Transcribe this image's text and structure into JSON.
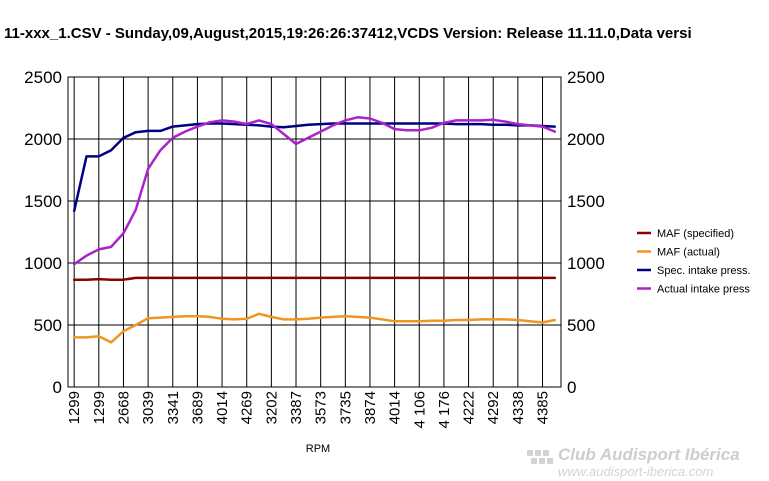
{
  "chart_data": {
    "type": "line",
    "title": "11-xxx_1.CSV - Sunday,09,August,2015,19:26:26:37412,VCDS Version: Release 11.11.0,Data versi",
    "xlabel": "RPM",
    "ylabel": "",
    "ylim": [
      0,
      2500
    ],
    "yticks": [
      "0",
      "500",
      "1000",
      "1500",
      "2000",
      "2500"
    ],
    "y2ticks": [
      "0",
      "500",
      "1000",
      "1500",
      "2000",
      "2500"
    ],
    "categories": [
      "1299",
      "1299",
      "2668",
      "3039",
      "3341",
      "3689",
      "4014",
      "4269",
      "3202",
      "3387",
      "3573",
      "3735",
      "3874",
      "4014",
      "4 106",
      "4 176",
      "4222",
      "4292",
      "4338",
      "4385"
    ],
    "grid": true,
    "legend_position": "right",
    "series": [
      {
        "name": "MAF (specified)",
        "color": "#8b0000",
        "x": [
          0,
          0.5,
          1,
          1.5,
          2,
          2.5,
          3,
          3.5,
          4,
          4.5,
          5,
          5.5,
          6,
          6.5,
          7,
          7.5,
          8,
          8.5,
          9,
          9.5,
          10,
          10.5,
          11,
          11.5,
          12,
          12.5,
          13,
          13.5,
          14,
          14.5,
          15,
          15.5,
          16,
          16.5,
          17,
          17.5,
          18,
          18.5,
          19,
          19.5
        ],
        "values": [
          865,
          865,
          870,
          865,
          865,
          880,
          880,
          880,
          880,
          880,
          880,
          880,
          880,
          880,
          880,
          880,
          880,
          880,
          880,
          880,
          880,
          880,
          880,
          880,
          880,
          880,
          880,
          880,
          880,
          880,
          880,
          880,
          880,
          880,
          880,
          880,
          880,
          880,
          880,
          880
        ]
      },
      {
        "name": "MAF (actual)",
        "color": "#f29422",
        "x": [
          0,
          0.5,
          1,
          1.5,
          2,
          2.5,
          3,
          3.5,
          4,
          4.5,
          5,
          5.5,
          6,
          6.5,
          7,
          7.5,
          8,
          8.5,
          9,
          9.5,
          10,
          10.5,
          11,
          11.5,
          12,
          12.5,
          13,
          13.5,
          14,
          14.5,
          15,
          15.5,
          16,
          16.5,
          17,
          17.5,
          18,
          18.5,
          19,
          19.5
        ],
        "values": [
          400,
          400,
          410,
          360,
          450,
          500,
          555,
          560,
          565,
          570,
          570,
          565,
          550,
          545,
          550,
          590,
          565,
          545,
          545,
          550,
          560,
          565,
          570,
          565,
          560,
          545,
          530,
          530,
          530,
          535,
          535,
          540,
          540,
          545,
          545,
          545,
          540,
          530,
          520,
          540
        ]
      },
      {
        "name": "Spec. intake press.",
        "color": "#000080",
        "x": [
          0,
          0.5,
          1,
          1.5,
          2,
          2.5,
          3,
          3.5,
          4,
          4.5,
          5,
          5.5,
          6,
          6.5,
          7,
          7.5,
          8,
          8.5,
          9,
          9.5,
          10,
          10.5,
          11,
          11.5,
          12,
          12.5,
          13,
          13.5,
          14,
          14.5,
          15,
          15.5,
          16,
          16.5,
          17,
          17.5,
          18,
          18.5,
          19,
          19.5
        ],
        "values": [
          1420,
          1860,
          1860,
          1910,
          2010,
          2055,
          2065,
          2065,
          2100,
          2110,
          2120,
          2125,
          2125,
          2120,
          2115,
          2110,
          2100,
          2095,
          2105,
          2115,
          2120,
          2125,
          2125,
          2125,
          2125,
          2125,
          2125,
          2125,
          2125,
          2125,
          2125,
          2120,
          2120,
          2120,
          2115,
          2115,
          2110,
          2110,
          2105,
          2100
        ]
      },
      {
        "name": "Actual intake press",
        "color": "#aa22cc",
        "x": [
          0,
          0.5,
          1,
          1.5,
          2,
          2.5,
          3,
          3.5,
          4,
          4.5,
          5,
          5.5,
          6,
          6.5,
          7,
          7.5,
          8,
          8.5,
          9,
          9.5,
          10,
          10.5,
          11,
          11.5,
          12,
          12.5,
          13,
          13.5,
          14,
          14.5,
          15,
          15.5,
          16,
          16.5,
          17,
          17.5,
          18,
          18.5,
          19,
          19.5
        ],
        "values": [
          990,
          1060,
          1110,
          1130,
          1240,
          1430,
          1760,
          1910,
          2010,
          2060,
          2100,
          2135,
          2150,
          2140,
          2120,
          2150,
          2120,
          2040,
          1960,
          2010,
          2060,
          2110,
          2150,
          2175,
          2165,
          2130,
          2080,
          2070,
          2070,
          2090,
          2130,
          2150,
          2150,
          2150,
          2155,
          2140,
          2120,
          2110,
          2100,
          2060
        ]
      }
    ]
  },
  "watermark": {
    "name": "Club Audisport Ibérica",
    "url": "www.audisport-iberica.com"
  }
}
